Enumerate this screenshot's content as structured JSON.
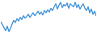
{
  "chart_data": {
    "type": "line",
    "color": "#3a8fd6",
    "tick_labels": false,
    "ylim": [
      0,
      46
    ],
    "values": [
      18,
      14,
      10,
      6,
      12,
      5,
      9,
      15,
      20,
      17,
      22,
      19,
      24,
      21,
      26,
      23,
      25,
      28,
      24,
      27,
      30,
      26,
      29,
      32,
      28,
      31,
      27,
      33,
      30,
      34,
      31,
      36,
      33,
      38,
      42,
      35,
      40,
      44,
      37,
      41,
      39,
      43,
      36,
      42,
      40,
      38,
      44,
      37,
      41,
      35,
      39,
      42,
      36,
      33,
      38,
      30,
      35,
      28,
      32,
      26
    ]
  }
}
